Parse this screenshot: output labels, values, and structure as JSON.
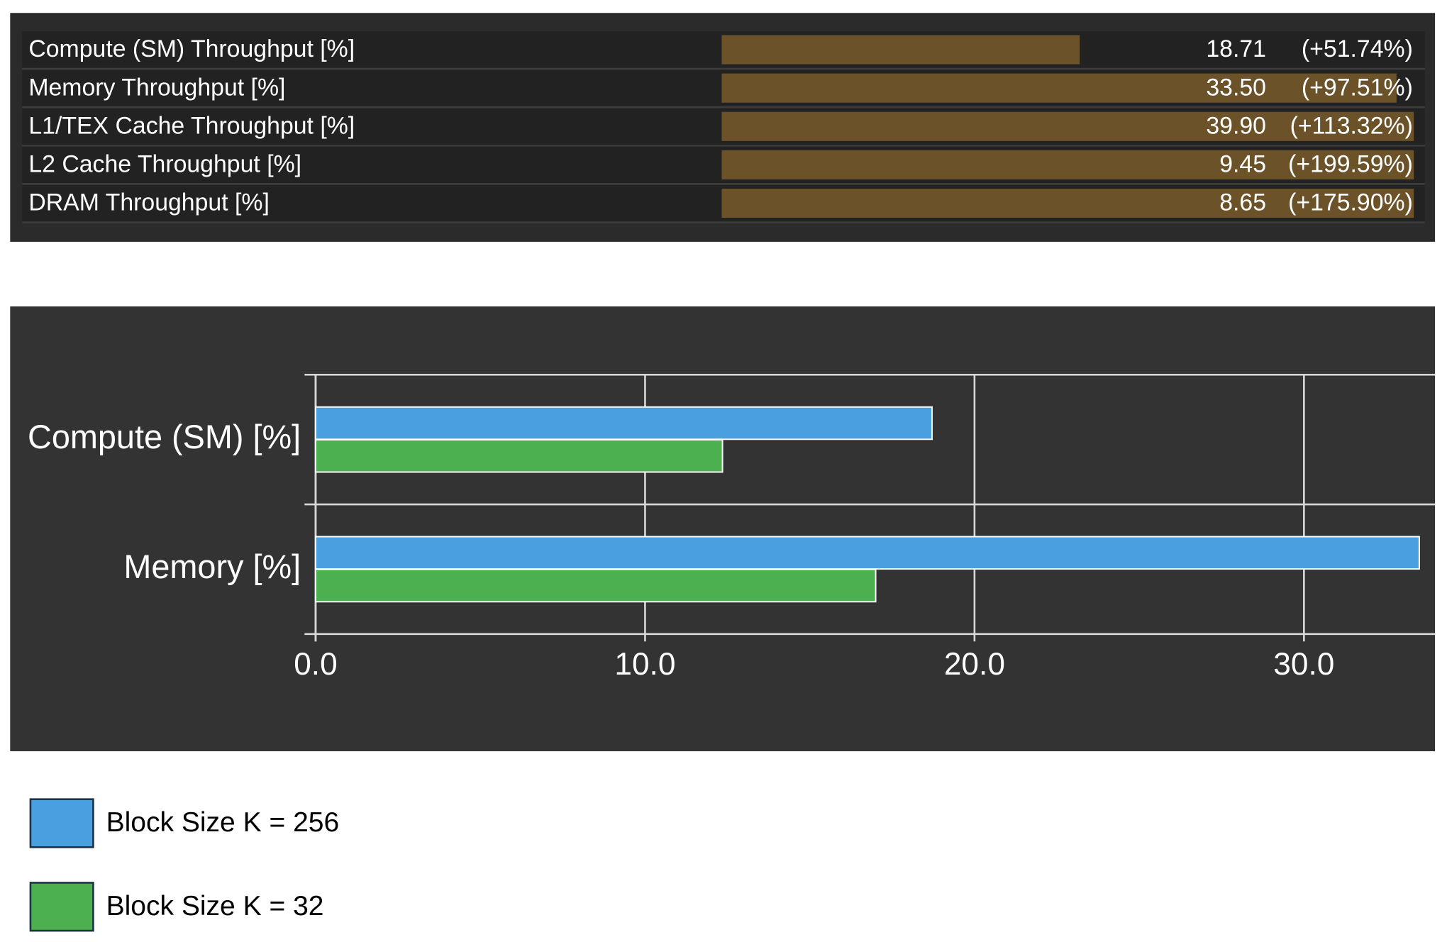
{
  "table": {
    "rows": [
      {
        "metric": "Compute (SM) Throughput [%]",
        "value": "18.71",
        "change": {
          "value": 51.74,
          "label": "(+51.74%)"
        }
      },
      {
        "metric": "Memory Throughput [%]",
        "value": "33.50",
        "change": {
          "value": 97.51,
          "label": "(+97.51%)"
        }
      },
      {
        "metric": "L1/TEX Cache Throughput [%]",
        "value": "39.90",
        "change": {
          "value": 113.32,
          "label": "(+113.32%)"
        }
      },
      {
        "metric": "L2 Cache Throughput [%]",
        "value": "9.45",
        "change": {
          "value": 199.59,
          "label": "(+199.59%)"
        }
      },
      {
        "metric": "DRAM Throughput [%]",
        "value": "8.65",
        "change": {
          "value": 175.9,
          "label": "(+175.90%)"
        }
      }
    ]
  },
  "chart_data": {
    "type": "hbar",
    "categories": [
      "Compute (SM) [%]",
      "Memory [%]"
    ],
    "series": [
      {
        "name": "Block Size K = 256",
        "color": "#4a9fe0",
        "values": [
          18.71,
          33.5
        ]
      },
      {
        "name": "Block Size K = 32",
        "color": "#4caf50",
        "values": [
          12.35,
          17.0
        ]
      }
    ],
    "xlim": [
      0,
      34
    ],
    "xticks": [
      {
        "value": 0,
        "label": "0.0"
      },
      {
        "value": 10,
        "label": "10.0"
      },
      {
        "value": 20,
        "label": "20.0"
      },
      {
        "value": 30,
        "label": "30.0"
      }
    ],
    "grid": true
  }
}
